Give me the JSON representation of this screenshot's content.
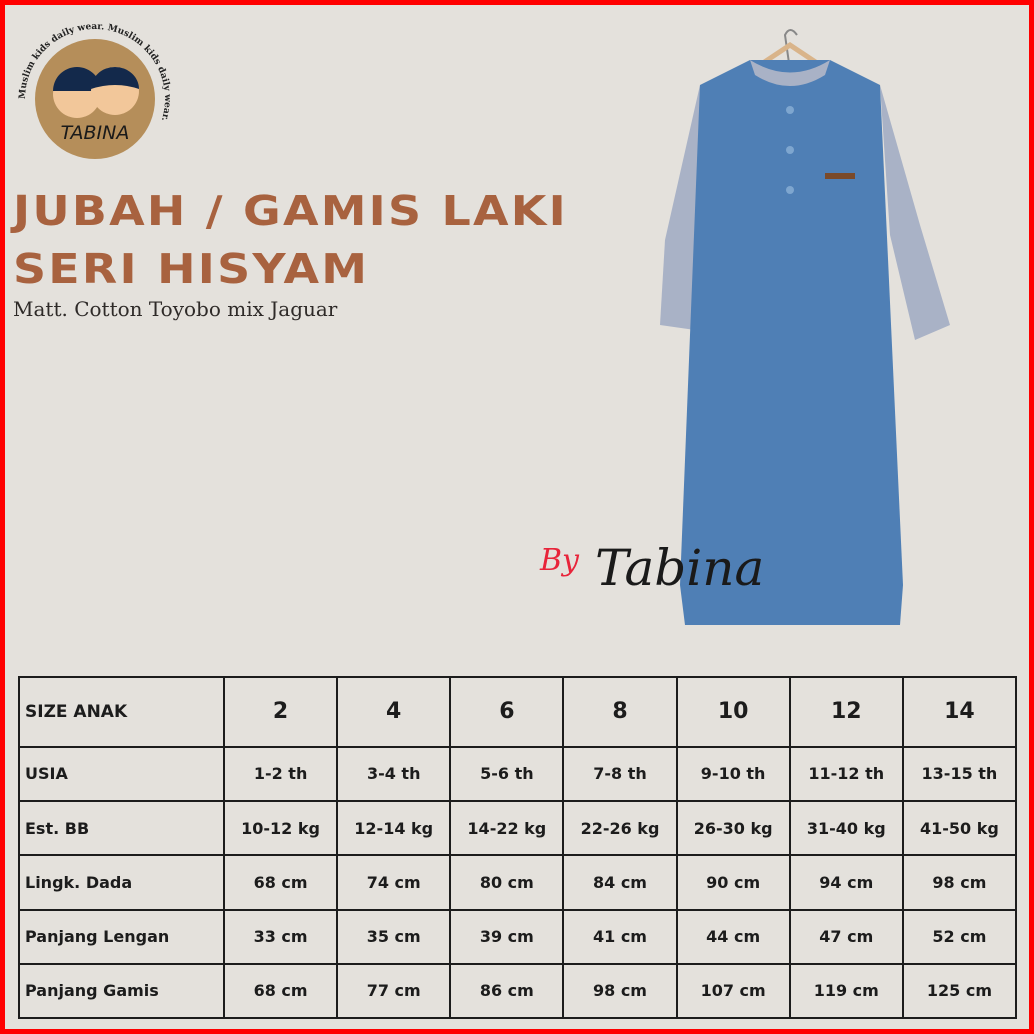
{
  "brand": {
    "logo_text": "TABINA",
    "logo_ring_text": "Muslim kids daily wear. Muslim kids daily wear.",
    "signature": "By Tabina"
  },
  "title_line1": "JUBAH / GAMIS LAKI",
  "title_line2": "SERI HISYAM",
  "subtitle": "Matt. Cotton Toyobo mix Jaguar",
  "colors": {
    "title": "#a8623f",
    "background": "#e4e1dc",
    "border": "#ff0000",
    "garment_body": "#4f7fb5",
    "garment_sleeve": "#a9b2c6"
  },
  "size_table": {
    "header": {
      "label": "SIZE ANAK",
      "sizes": [
        "2",
        "4",
        "6",
        "8",
        "10",
        "12",
        "14"
      ]
    },
    "rows": [
      {
        "label": "USIA",
        "values": [
          "1-2 th",
          "3-4 th",
          "5-6 th",
          "7-8 th",
          "9-10 th",
          "11-12 th",
          "13-15 th"
        ]
      },
      {
        "label": "Est. BB",
        "values": [
          "10-12 kg",
          "12-14 kg",
          "14-22 kg",
          "22-26 kg",
          "26-30 kg",
          "31-40 kg",
          "41-50 kg"
        ]
      },
      {
        "label": "Lingk. Dada",
        "values": [
          "68 cm",
          "74 cm",
          "80 cm",
          "84 cm",
          "90 cm",
          "94 cm",
          "98 cm"
        ]
      },
      {
        "label": "Panjang Lengan",
        "values": [
          "33 cm",
          "35 cm",
          "39 cm",
          "41 cm",
          "44 cm",
          "47 cm",
          "52 cm"
        ]
      },
      {
        "label": "Panjang Gamis",
        "values": [
          "68 cm",
          "77 cm",
          "86 cm",
          "98 cm",
          "107 cm",
          "119 cm",
          "125 cm"
        ]
      }
    ]
  }
}
